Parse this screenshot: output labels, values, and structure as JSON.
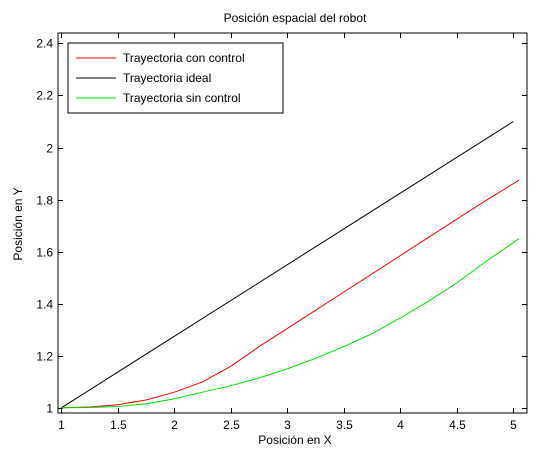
{
  "chart_data": {
    "type": "line",
    "title": "Posición espacial del robot",
    "xlabel": "Posición en X",
    "ylabel": "Posición en Y",
    "xlim": [
      0.97,
      5.12
    ],
    "ylim": [
      0.98,
      2.44
    ],
    "xticks": [
      1,
      1.5,
      2,
      2.5,
      3,
      3.5,
      4,
      4.5,
      5
    ],
    "xtick_labels": [
      "1",
      "1.5",
      "2",
      "2.5",
      "3",
      "3.5",
      "4",
      "4.5",
      "5"
    ],
    "yticks": [
      1,
      1.2,
      1.4,
      1.6,
      1.8,
      2,
      2.2,
      2.4
    ],
    "ytick_labels": [
      "1",
      "1.2",
      "1.4",
      "1.6",
      "1.8",
      "2",
      "2.2",
      "2.4"
    ],
    "grid": false,
    "legend_position": "top-left",
    "series": [
      {
        "name": "Trayectoria con control",
        "color": "#ff0000",
        "x": [
          1,
          1.25,
          1.5,
          1.75,
          2,
          2.25,
          2.5,
          2.75,
          3,
          3.25,
          3.5,
          3.75,
          4,
          4.25,
          4.5,
          4.75,
          5.05
        ],
        "y": [
          1.0,
          1.003,
          1.012,
          1.03,
          1.06,
          1.1,
          1.16,
          1.235,
          1.305,
          1.375,
          1.445,
          1.515,
          1.585,
          1.655,
          1.725,
          1.795,
          1.875
        ]
      },
      {
        "name": "Trayectoria ideal",
        "color": "#000000",
        "x": [
          1,
          5
        ],
        "y": [
          1.0,
          2.1
        ]
      },
      {
        "name": "Trayectoria sin control",
        "color": "#00dd00",
        "x": [
          1,
          1.25,
          1.5,
          1.75,
          2,
          2.25,
          2.5,
          2.75,
          3,
          3.25,
          3.5,
          3.75,
          4,
          4.25,
          4.5,
          4.75,
          5.05
        ],
        "y": [
          1.0,
          1.001,
          1.005,
          1.015,
          1.035,
          1.06,
          1.085,
          1.115,
          1.15,
          1.19,
          1.235,
          1.285,
          1.345,
          1.41,
          1.48,
          1.56,
          1.65
        ]
      }
    ]
  }
}
